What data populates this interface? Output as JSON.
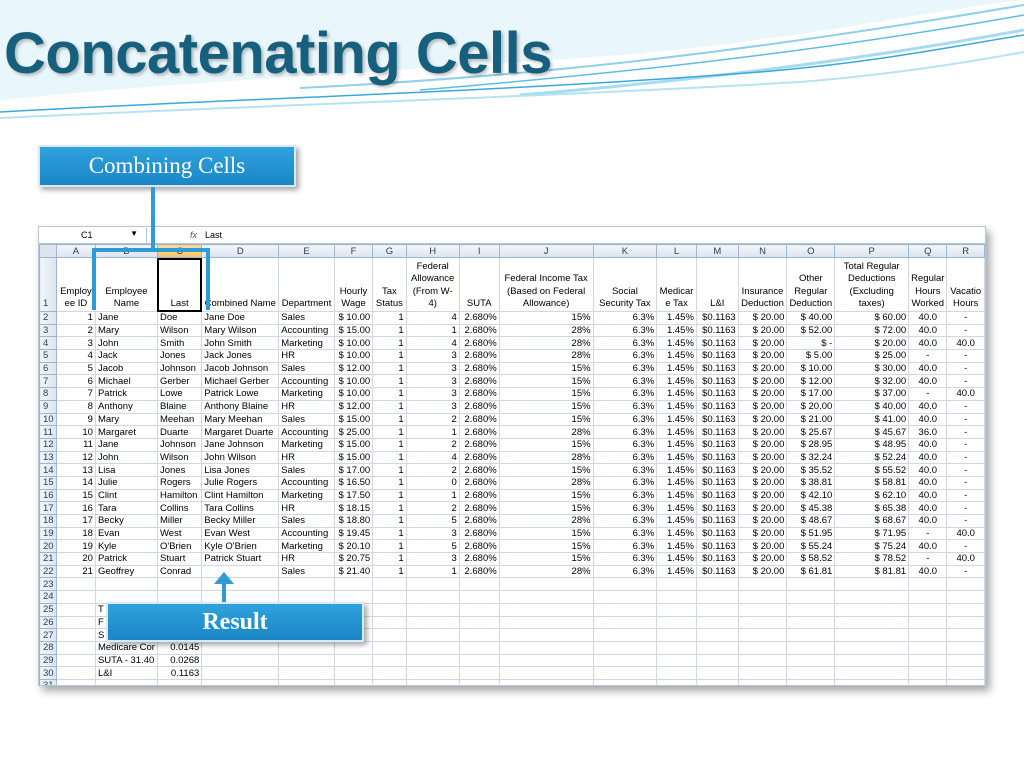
{
  "slide": {
    "title": "Concatenating Cells",
    "callout_top": "Combining Cells",
    "callout_bottom": "Result",
    "colors": {
      "title": "#17607d",
      "callout": "#1b86c6",
      "bracket": "#2e9ad6"
    }
  },
  "sheet": {
    "name_box": "C1",
    "fx_label": "fx",
    "formula": "Last",
    "columns": [
      "A",
      "B",
      "C",
      "D",
      "E",
      "F",
      "G",
      "H",
      "I",
      "J",
      "K",
      "L",
      "M",
      "N",
      "O",
      "P",
      "Q",
      "R"
    ],
    "headers": [
      "Employ ee ID",
      "Employee Name",
      "Last",
      "Combined Name",
      "Department",
      "Hourly Wage",
      "Tax Status",
      "Federal Allowance (From W-4)",
      "SUTA",
      "Federal Income Tax (Based on Federal Allowance)",
      "Social Security Tax",
      "Medicar e Tax",
      "L&I",
      "Insurance Deduction",
      "Other Regular Deduction",
      "Total Regular Deductions (Excluding taxes)",
      "Regular Hours Worked",
      "Vacatio Hours"
    ],
    "rows": [
      [
        "1",
        "Jane",
        "Doe",
        "Jane Doe",
        "Sales",
        "$ 10.00",
        "1",
        "4",
        "2.680%",
        "15%",
        "6.3%",
        "1.45%",
        "$0.1163",
        "$   20.00",
        "$   40.00",
        "$            60.00",
        "40.0",
        "-"
      ],
      [
        "2",
        "Mary",
        "Wilson",
        "Mary Wilson",
        "Accounting",
        "$ 15.00",
        "1",
        "1",
        "2.680%",
        "28%",
        "6.3%",
        "1.45%",
        "$0.1163",
        "$   20.00",
        "$   52.00",
        "$            72.00",
        "40.0",
        "-"
      ],
      [
        "3",
        "John",
        "Smith",
        "John Smith",
        "Marketing",
        "$ 10.00",
        "1",
        "4",
        "2.680%",
        "28%",
        "6.3%",
        "1.45%",
        "$0.1163",
        "$   20.00",
        "$        -",
        "$            20.00",
        "40.0",
        "40.0"
      ],
      [
        "4",
        "Jack",
        "Jones",
        "Jack Jones",
        "HR",
        "$ 10.00",
        "1",
        "3",
        "2.680%",
        "28%",
        "6.3%",
        "1.45%",
        "$0.1163",
        "$   20.00",
        "$     5.00",
        "$            25.00",
        "-",
        "-"
      ],
      [
        "5",
        "Jacob",
        "Johnson",
        "Jacob Johnson",
        "Sales",
        "$ 12.00",
        "1",
        "3",
        "2.680%",
        "15%",
        "6.3%",
        "1.45%",
        "$0.1163",
        "$   20.00",
        "$   10.00",
        "$            30.00",
        "40.0",
        "-"
      ],
      [
        "6",
        "Michael",
        "Gerber",
        "Michael Gerber",
        "Accounting",
        "$ 10.00",
        "1",
        "3",
        "2.680%",
        "15%",
        "6.3%",
        "1.45%",
        "$0.1163",
        "$   20.00",
        "$   12.00",
        "$            32.00",
        "40.0",
        "-"
      ],
      [
        "7",
        "Patrick",
        "Lowe",
        "Patrick Lowe",
        "Marketing",
        "$ 10.00",
        "1",
        "3",
        "2.680%",
        "15%",
        "6.3%",
        "1.45%",
        "$0.1163",
        "$   20.00",
        "$   17.00",
        "$            37.00",
        "-",
        "40.0"
      ],
      [
        "8",
        "Anthony",
        "Blaine",
        "Anthony Blaine",
        "HR",
        "$ 12.00",
        "1",
        "3",
        "2.680%",
        "15%",
        "6.3%",
        "1.45%",
        "$0.1163",
        "$   20.00",
        "$   20.00",
        "$            40.00",
        "40.0",
        "-"
      ],
      [
        "9",
        "Mary",
        "Meehan",
        "Mary Meehan",
        "Sales",
        "$ 15.00",
        "1",
        "2",
        "2.680%",
        "15%",
        "6.3%",
        "1.45%",
        "$0.1163",
        "$   20.00",
        "$   21.00",
        "$            41.00",
        "40.0",
        "-"
      ],
      [
        "10",
        "Margaret",
        "Duarte",
        "Margaret Duarte",
        "Accounting",
        "$ 25.00",
        "1",
        "1",
        "2.680%",
        "28%",
        "6.3%",
        "1.45%",
        "$0.1163",
        "$   20.00",
        "$   25.67",
        "$            45.67",
        "36.0",
        "-"
      ],
      [
        "11",
        "Jane",
        "Johnson",
        "Jane Johnson",
        "Marketing",
        "$ 15.00",
        "1",
        "2",
        "2.680%",
        "15%",
        "6.3%",
        "1.45%",
        "$0.1163",
        "$   20.00",
        "$   28.95",
        "$            48.95",
        "40.0",
        "-"
      ],
      [
        "12",
        "John",
        "Wilson",
        "John Wilson",
        "HR",
        "$ 15.00",
        "1",
        "4",
        "2.680%",
        "28%",
        "6.3%",
        "1.45%",
        "$0.1163",
        "$   20.00",
        "$   32.24",
        "$            52.24",
        "40.0",
        "-"
      ],
      [
        "13",
        "Lisa",
        "Jones",
        "Lisa Jones",
        "Sales",
        "$ 17.00",
        "1",
        "2",
        "2.680%",
        "15%",
        "6.3%",
        "1.45%",
        "$0.1163",
        "$   20.00",
        "$   35.52",
        "$            55.52",
        "40.0",
        "-"
      ],
      [
        "14",
        "Julie",
        "Rogers",
        "Julie Rogers",
        "Accounting",
        "$ 16.50",
        "1",
        "0",
        "2.680%",
        "28%",
        "6.3%",
        "1.45%",
        "$0.1163",
        "$   20.00",
        "$   38.81",
        "$            58.81",
        "40.0",
        "-"
      ],
      [
        "15",
        "Clint",
        "Hamilton",
        "Clint Hamilton",
        "Marketing",
        "$ 17.50",
        "1",
        "1",
        "2.680%",
        "15%",
        "6.3%",
        "1.45%",
        "$0.1163",
        "$   20.00",
        "$   42.10",
        "$            62.10",
        "40.0",
        "-"
      ],
      [
        "16",
        "Tara",
        "Collins",
        "Tara Collins",
        "HR",
        "$ 18.15",
        "1",
        "2",
        "2.680%",
        "15%",
        "6.3%",
        "1.45%",
        "$0.1163",
        "$   20.00",
        "$   45.38",
        "$            65.38",
        "40.0",
        "-"
      ],
      [
        "17",
        "Becky",
        "Miller",
        "Becky Miller",
        "Sales",
        "$ 18.80",
        "1",
        "5",
        "2.680%",
        "28%",
        "6.3%",
        "1.45%",
        "$0.1163",
        "$   20.00",
        "$   48.67",
        "$            68.67",
        "40.0",
        "-"
      ],
      [
        "18",
        "Evan",
        "West",
        "Evan West",
        "Accounting",
        "$ 19.45",
        "1",
        "3",
        "2.680%",
        "15%",
        "6.3%",
        "1.45%",
        "$0.1163",
        "$   20.00",
        "$   51.95",
        "$            71.95",
        "-",
        "40.0"
      ],
      [
        "19",
        "Kyle",
        "O'Brien",
        "Kyle O'Brien",
        "Marketing",
        "$ 20.10",
        "1",
        "5",
        "2.680%",
        "15%",
        "6.3%",
        "1.45%",
        "$0.1163",
        "$   20.00",
        "$   55.24",
        "$            75.24",
        "40.0",
        "-"
      ],
      [
        "20",
        "Patrick",
        "Stuart",
        "Patrick Stuart",
        "HR",
        "$ 20.75",
        "1",
        "3",
        "2.680%",
        "15%",
        "6.3%",
        "1.45%",
        "$0.1163",
        "$   20.00",
        "$   58.52",
        "$            78.52",
        "-",
        "40.0"
      ],
      [
        "21",
        "Geoffrey",
        "Conrad",
        "",
        "Sales",
        "$ 21.40",
        "1",
        "1",
        "2.680%",
        "28%",
        "6.3%",
        "1.45%",
        "$0.1163",
        "$   20.00",
        "$   61.81",
        "$            81.81",
        "40.0",
        "-"
      ]
    ],
    "blank_rows": [
      "23",
      "24"
    ],
    "footer_rows": [
      {
        "row": "25",
        "label": "T",
        "value": ""
      },
      {
        "row": "26",
        "label": "F",
        "value": ""
      },
      {
        "row": "27",
        "label": "S",
        "value": ""
      },
      {
        "row": "28",
        "label": "Medicare Cor",
        "value": "0.0145"
      },
      {
        "row": "29",
        "label": "SUTA - 31.40",
        "value": "0.0268"
      },
      {
        "row": "30",
        "label": "L&I",
        "value": "0.1163"
      },
      {
        "row": "31",
        "label": "",
        "value": ""
      }
    ]
  }
}
